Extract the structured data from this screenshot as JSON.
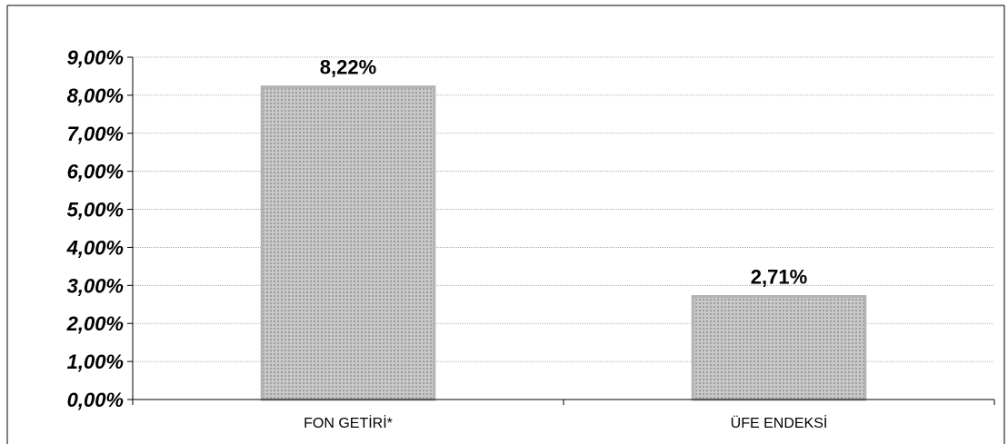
{
  "chart_data": {
    "type": "bar",
    "categories": [
      "FON GETİRİ*",
      "ÜFE ENDEKSİ"
    ],
    "values": [
      8.22,
      2.71
    ],
    "data_labels": [
      "8,22%",
      "2,71%"
    ],
    "title": "",
    "xlabel": "",
    "ylabel": "",
    "ylim": [
      0,
      9
    ],
    "y_ticks": [
      0,
      1,
      2,
      3,
      4,
      5,
      6,
      7,
      8,
      9
    ],
    "y_tick_labels": [
      "0,00%",
      "1,00%",
      "2,00%",
      "3,00%",
      "4,00%",
      "5,00%",
      "6,00%",
      "7,00%",
      "8,00%",
      "9,00%"
    ],
    "grid": true,
    "legend": "none",
    "bar_color": "#b3b3b3"
  }
}
